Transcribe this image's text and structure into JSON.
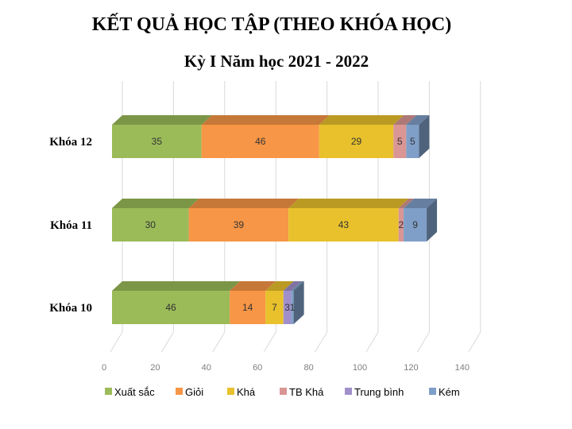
{
  "chart_data": {
    "type": "bar",
    "orientation": "horizontal",
    "stacked": true,
    "style": "3d",
    "title": "KẾT QUẢ HỌC TẬP (THEO KHÓA HỌC)",
    "subtitle": "Kỳ I Năm học 2021 - 2022",
    "xlabel": "",
    "ylabel": "",
    "xlim": [
      0,
      140
    ],
    "x_ticks": [
      "0",
      "20",
      "40",
      "60",
      "80",
      "100",
      "120",
      "140"
    ],
    "grid": true,
    "legend_position": "bottom",
    "categories": [
      "Khóa 12",
      "Khóa 11",
      "Khóa 10"
    ],
    "series": [
      {
        "name": "Xuất sắc",
        "color": "#9bbb59",
        "values": [
          35,
          30,
          46
        ]
      },
      {
        "name": "Giỏi",
        "color": "#f79646",
        "values": [
          46,
          39,
          14
        ]
      },
      {
        "name": "Khá",
        "color": "#e8c12c",
        "values": [
          29,
          43,
          7
        ]
      },
      {
        "name": "TB Khá",
        "color": "#d99694",
        "values": [
          5,
          2,
          0
        ]
      },
      {
        "name": "Trung bình",
        "color": "#a08fcb",
        "values": [
          0,
          0,
          3
        ]
      },
      {
        "name": "Kém",
        "color": "#7f9fc8",
        "values": [
          5,
          9,
          1
        ]
      }
    ]
  }
}
